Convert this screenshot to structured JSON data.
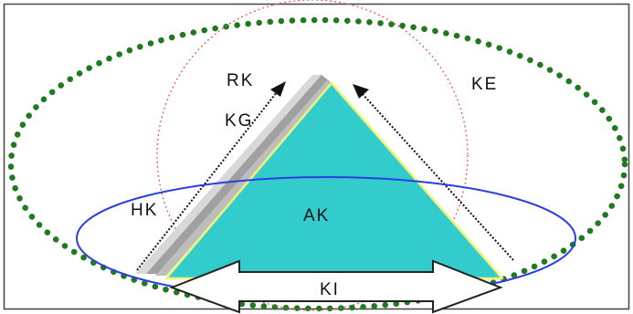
{
  "diagram": {
    "labels": {
      "rk": "RK",
      "ke": "KE",
      "kg": "KG",
      "hk": "HK",
      "ak": "AK",
      "ki": "KI"
    },
    "colors": {
      "outer_ellipse_dots": "#1f7a1f",
      "circle_dotted": "#e85a5a",
      "blue_ellipse": "#2b3fe0",
      "triangle_fill": "#33cccc",
      "triangle_edge": "#f2f27a",
      "shadow_dark": "#a0a0a0",
      "shadow_light": "#d8d8d8",
      "arrows": "#111111",
      "double_arrow_fill": "#ffffff",
      "double_arrow_stroke": "#222222",
      "frame": "#444444"
    }
  }
}
